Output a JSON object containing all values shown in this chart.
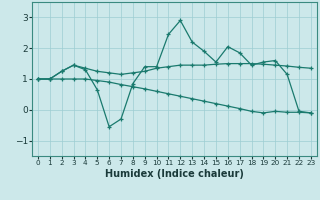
{
  "title": "",
  "xlabel": "Humidex (Indice chaleur)",
  "ylabel": "",
  "background_color": "#cce8ea",
  "grid_color": "#9ecdd2",
  "line_color": "#1a7a6e",
  "x": [
    0,
    1,
    2,
    3,
    4,
    5,
    6,
    7,
    8,
    9,
    10,
    11,
    12,
    13,
    14,
    15,
    16,
    17,
    18,
    19,
    20,
    21,
    22,
    23
  ],
  "line1": [
    1.0,
    1.0,
    1.25,
    1.45,
    1.3,
    0.65,
    -0.55,
    -0.3,
    0.85,
    1.4,
    1.4,
    2.45,
    2.9,
    2.2,
    1.9,
    1.55,
    2.05,
    1.85,
    1.45,
    1.55,
    1.6,
    1.15,
    -0.05,
    -0.1
  ],
  "line2": [
    1.0,
    1.0,
    1.25,
    1.45,
    1.35,
    1.25,
    1.2,
    1.15,
    1.2,
    1.25,
    1.35,
    1.4,
    1.45,
    1.45,
    1.45,
    1.48,
    1.5,
    1.5,
    1.5,
    1.48,
    1.45,
    1.42,
    1.38,
    1.35
  ],
  "line3": [
    1.0,
    1.0,
    1.0,
    1.0,
    1.0,
    0.95,
    0.9,
    0.82,
    0.75,
    0.68,
    0.6,
    0.52,
    0.44,
    0.36,
    0.28,
    0.2,
    0.12,
    0.04,
    -0.05,
    -0.1,
    -0.05,
    -0.08,
    -0.08,
    -0.1
  ],
  "ylim": [
    -1.5,
    3.5
  ],
  "xlim": [
    -0.5,
    23.5
  ],
  "yticks": [
    -1,
    0,
    1,
    2,
    3
  ],
  "xticks": [
    0,
    1,
    2,
    3,
    4,
    5,
    6,
    7,
    8,
    9,
    10,
    11,
    12,
    13,
    14,
    15,
    16,
    17,
    18,
    19,
    20,
    21,
    22,
    23
  ]
}
